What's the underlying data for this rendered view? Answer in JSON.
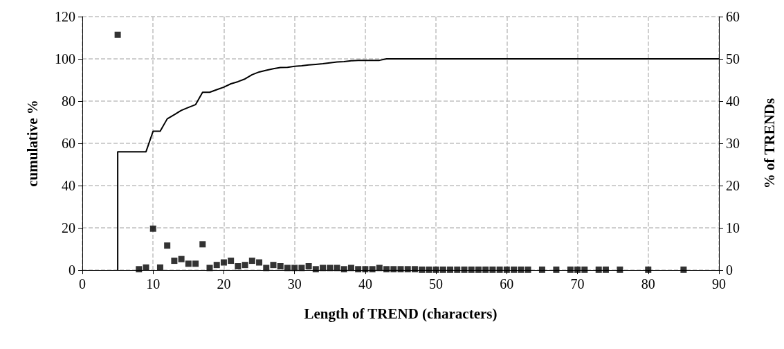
{
  "chart_data": {
    "type": "line",
    "xlabel": "Length of TREND (characters)",
    "ylabel": "cumulative %",
    "y2label": "% of TRENDs",
    "xlim": [
      0,
      90
    ],
    "xticks": [
      0,
      10,
      20,
      30,
      40,
      50,
      60,
      70,
      80,
      90
    ],
    "ylim": [
      0,
      120
    ],
    "yticks": [
      0,
      20,
      40,
      60,
      80,
      100,
      120
    ],
    "y2lim": [
      0,
      60
    ],
    "y2ticks": [
      0,
      10,
      20,
      30,
      40,
      50,
      60
    ],
    "grid": true,
    "series": [
      {
        "color": "#000000",
        "marker": "none",
        "line_style": "solid",
        "x": [
          5,
          5,
          9,
          10,
          11,
          12,
          13,
          14,
          15,
          16,
          17,
          18,
          19,
          20,
          21,
          22,
          23,
          24,
          25,
          26,
          27,
          28,
          29,
          30,
          31,
          32,
          33,
          34,
          35,
          36,
          37,
          38,
          39,
          40,
          41,
          42,
          43,
          90
        ],
        "values": [
          0,
          56,
          56,
          65.7,
          65.7,
          71.6,
          73.6,
          75.6,
          77,
          78.3,
          84.2,
          84.2,
          85.4,
          86.6,
          88.2,
          89.2,
          90.5,
          92.5,
          93.8,
          94.6,
          95.3,
          95.9,
          96,
          96.5,
          96.7,
          97.1,
          97.4,
          97.7,
          98.1,
          98.5,
          98.7,
          99.1,
          99.3,
          99.3,
          99.3,
          99.3,
          100,
          100
        ]
      },
      {
        "type": "scatter",
        "axis": "y2",
        "color": "#000000",
        "marker": "square",
        "x": [
          5,
          8,
          9,
          10,
          11,
          12,
          13,
          14,
          15,
          16,
          17,
          18,
          19,
          20,
          21,
          22,
          23,
          24,
          25,
          26,
          27,
          28,
          29,
          30,
          31,
          32,
          33,
          34,
          35,
          36,
          37,
          38,
          39,
          40,
          41,
          42,
          43,
          44,
          45,
          46,
          47,
          48,
          49,
          50,
          51,
          52,
          53,
          54,
          55,
          56,
          57,
          58,
          59,
          60,
          61,
          62,
          63,
          65,
          67,
          69,
          70,
          71,
          73,
          74,
          76,
          80,
          85
        ],
        "values": [
          55.7,
          0.2,
          0.6,
          9.8,
          0.6,
          5.8,
          2.2,
          2.6,
          1.5,
          1.5,
          6.1,
          0.5,
          1.2,
          1.8,
          2.2,
          0.9,
          1.2,
          2.2,
          1.8,
          0.5,
          1.2,
          0.9,
          0.5,
          0.5,
          0.5,
          0.9,
          0.2,
          0.5,
          0.5,
          0.5,
          0.2,
          0.5,
          0.2,
          0.2,
          0.2,
          0.5,
          0.2,
          0.2,
          0.2,
          0.2,
          0.2,
          0.1,
          0.1,
          0.1,
          0.1,
          0.1,
          0.1,
          0.1,
          0.1,
          0.1,
          0.1,
          0.1,
          0.1,
          0.1,
          0.1,
          0.1,
          0.1,
          0.1,
          0.1,
          0.1,
          0.1,
          0.1,
          0.1,
          0.1,
          0.1,
          0.1,
          0.1
        ]
      }
    ]
  }
}
